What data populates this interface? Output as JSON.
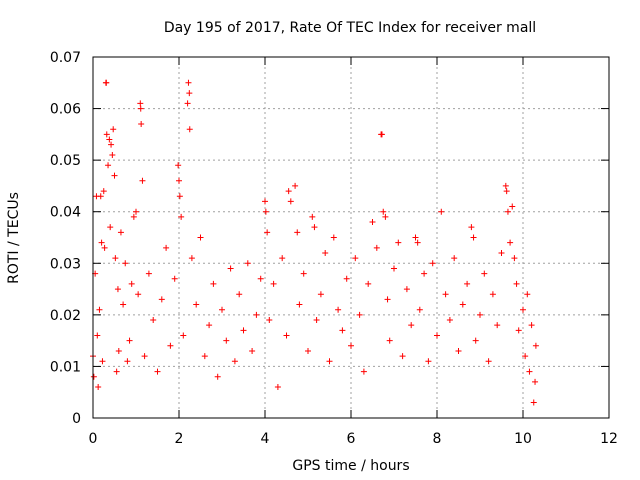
{
  "chart_data": {
    "type": "scatter",
    "title": "Day 195 of 2017, Rate Of TEC Index for receiver mall",
    "xlabel": "GPS time / hours",
    "ylabel": "ROTI / TECUs",
    "xlim": [
      0,
      12
    ],
    "ylim": [
      0,
      0.07
    ],
    "x_ticks": [
      0,
      2,
      4,
      6,
      8,
      10,
      12
    ],
    "x_tick_labels": [
      "0",
      "2",
      "4",
      "6",
      "8",
      "10",
      "12"
    ],
    "y_ticks": [
      0,
      0.01,
      0.02,
      0.03,
      0.04,
      0.05,
      0.06,
      0.07
    ],
    "y_tick_labels": [
      "0",
      "0.01",
      "0.02",
      "0.03",
      "0.04",
      "0.05",
      "0.06",
      "0.07"
    ],
    "grid": true,
    "marker": "+",
    "marker_color": "#ff0000",
    "series": [
      {
        "name": "ROTI",
        "points": [
          [
            0.0,
            0.012
          ],
          [
            0.02,
            0.008
          ],
          [
            0.05,
            0.028
          ],
          [
            0.08,
            0.043
          ],
          [
            0.1,
            0.016
          ],
          [
            0.12,
            0.006
          ],
          [
            0.15,
            0.021
          ],
          [
            0.18,
            0.043
          ],
          [
            0.2,
            0.034
          ],
          [
            0.22,
            0.011
          ],
          [
            0.25,
            0.044
          ],
          [
            0.27,
            0.033
          ],
          [
            0.3,
            0.065
          ],
          [
            0.31,
            0.065
          ],
          [
            0.32,
            0.055
          ],
          [
            0.35,
            0.049
          ],
          [
            0.38,
            0.054
          ],
          [
            0.4,
            0.037
          ],
          [
            0.42,
            0.053
          ],
          [
            0.45,
            0.051
          ],
          [
            0.47,
            0.056
          ],
          [
            0.5,
            0.047
          ],
          [
            0.52,
            0.031
          ],
          [
            0.55,
            0.009
          ],
          [
            0.58,
            0.025
          ],
          [
            0.6,
            0.013
          ],
          [
            0.65,
            0.036
          ],
          [
            0.7,
            0.022
          ],
          [
            0.75,
            0.03
          ],
          [
            0.8,
            0.011
          ],
          [
            0.85,
            0.015
          ],
          [
            0.9,
            0.026
          ],
          [
            0.95,
            0.039
          ],
          [
            1.0,
            0.04
          ],
          [
            1.05,
            0.024
          ],
          [
            1.1,
            0.061
          ],
          [
            1.11,
            0.06
          ],
          [
            1.12,
            0.057
          ],
          [
            1.15,
            0.046
          ],
          [
            1.2,
            0.012
          ],
          [
            1.3,
            0.028
          ],
          [
            1.4,
            0.019
          ],
          [
            1.5,
            0.009
          ],
          [
            1.6,
            0.023
          ],
          [
            1.7,
            0.033
          ],
          [
            1.8,
            0.014
          ],
          [
            1.9,
            0.027
          ],
          [
            1.98,
            0.049
          ],
          [
            2.0,
            0.046
          ],
          [
            2.02,
            0.043
          ],
          [
            2.05,
            0.039
          ],
          [
            2.1,
            0.016
          ],
          [
            2.2,
            0.061
          ],
          [
            2.22,
            0.065
          ],
          [
            2.24,
            0.063
          ],
          [
            2.25,
            0.056
          ],
          [
            2.3,
            0.031
          ],
          [
            2.4,
            0.022
          ],
          [
            2.5,
            0.035
          ],
          [
            2.6,
            0.012
          ],
          [
            2.7,
            0.018
          ],
          [
            2.8,
            0.026
          ],
          [
            2.9,
            0.008
          ],
          [
            3.0,
            0.021
          ],
          [
            3.1,
            0.015
          ],
          [
            3.2,
            0.029
          ],
          [
            3.3,
            0.011
          ],
          [
            3.4,
            0.024
          ],
          [
            3.5,
            0.017
          ],
          [
            3.6,
            0.03
          ],
          [
            3.7,
            0.013
          ],
          [
            3.8,
            0.02
          ],
          [
            3.9,
            0.027
          ],
          [
            4.0,
            0.042
          ],
          [
            4.02,
            0.04
          ],
          [
            4.05,
            0.036
          ],
          [
            4.1,
            0.019
          ],
          [
            4.2,
            0.026
          ],
          [
            4.3,
            0.006
          ],
          [
            4.4,
            0.031
          ],
          [
            4.5,
            0.016
          ],
          [
            4.55,
            0.044
          ],
          [
            4.6,
            0.042
          ],
          [
            4.7,
            0.045
          ],
          [
            4.75,
            0.036
          ],
          [
            4.8,
            0.022
          ],
          [
            4.9,
            0.028
          ],
          [
            5.0,
            0.013
          ],
          [
            5.1,
            0.039
          ],
          [
            5.15,
            0.037
          ],
          [
            5.2,
            0.019
          ],
          [
            5.3,
            0.024
          ],
          [
            5.4,
            0.032
          ],
          [
            5.5,
            0.011
          ],
          [
            5.6,
            0.035
          ],
          [
            5.7,
            0.021
          ],
          [
            5.8,
            0.017
          ],
          [
            5.9,
            0.027
          ],
          [
            6.0,
            0.014
          ],
          [
            6.1,
            0.031
          ],
          [
            6.2,
            0.02
          ],
          [
            6.3,
            0.009
          ],
          [
            6.4,
            0.026
          ],
          [
            6.5,
            0.038
          ],
          [
            6.6,
            0.033
          ],
          [
            6.7,
            0.055
          ],
          [
            6.72,
            0.055
          ],
          [
            6.75,
            0.04
          ],
          [
            6.8,
            0.039
          ],
          [
            6.85,
            0.023
          ],
          [
            6.9,
            0.015
          ],
          [
            7.0,
            0.029
          ],
          [
            7.1,
            0.034
          ],
          [
            7.2,
            0.012
          ],
          [
            7.3,
            0.025
          ],
          [
            7.4,
            0.018
          ],
          [
            7.5,
            0.035
          ],
          [
            7.55,
            0.034
          ],
          [
            7.6,
            0.021
          ],
          [
            7.7,
            0.028
          ],
          [
            7.8,
            0.011
          ],
          [
            7.9,
            0.03
          ],
          [
            8.0,
            0.016
          ],
          [
            8.1,
            0.04
          ],
          [
            8.2,
            0.024
          ],
          [
            8.3,
            0.019
          ],
          [
            8.4,
            0.031
          ],
          [
            8.5,
            0.013
          ],
          [
            8.6,
            0.022
          ],
          [
            8.7,
            0.026
          ],
          [
            8.8,
            0.037
          ],
          [
            8.85,
            0.035
          ],
          [
            8.9,
            0.015
          ],
          [
            9.0,
            0.02
          ],
          [
            9.1,
            0.028
          ],
          [
            9.2,
            0.011
          ],
          [
            9.3,
            0.024
          ],
          [
            9.4,
            0.018
          ],
          [
            9.5,
            0.032
          ],
          [
            9.6,
            0.045
          ],
          [
            9.62,
            0.044
          ],
          [
            9.65,
            0.04
          ],
          [
            9.7,
            0.034
          ],
          [
            9.75,
            0.041
          ],
          [
            9.8,
            0.031
          ],
          [
            9.85,
            0.026
          ],
          [
            9.9,
            0.017
          ],
          [
            10.0,
            0.021
          ],
          [
            10.05,
            0.012
          ],
          [
            10.1,
            0.024
          ],
          [
            10.15,
            0.009
          ],
          [
            10.2,
            0.018
          ],
          [
            10.25,
            0.003
          ],
          [
            10.28,
            0.007
          ],
          [
            10.3,
            0.014
          ]
        ]
      }
    ]
  }
}
